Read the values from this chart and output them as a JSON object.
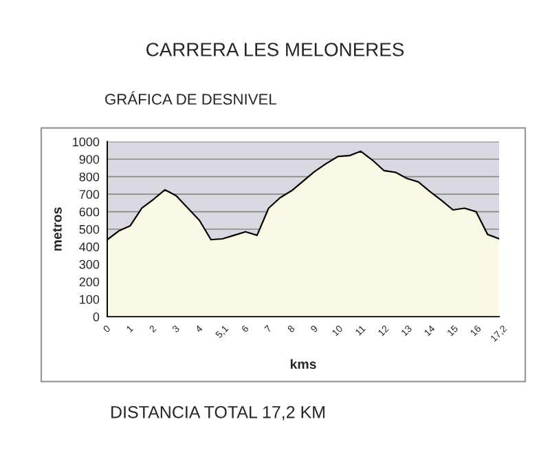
{
  "chart_data": {
    "type": "area",
    "title": "CARRERA LES MELONERES",
    "subtitle": "GRÁFICA DE DESNIVEL",
    "xlabel": "kms",
    "ylabel": "metros",
    "annotations": [
      "DISTANCIA TOTAL 17,2 KM"
    ],
    "categories": [
      "0",
      null,
      "1",
      null,
      "2",
      null,
      "3",
      null,
      "4",
      null,
      "5,1",
      null,
      "6",
      null,
      "7",
      null,
      "8",
      null,
      "9",
      null,
      "10",
      null,
      "11",
      null,
      "12",
      null,
      "13",
      null,
      "14",
      null,
      "15",
      null,
      "16",
      null,
      "17,2"
    ],
    "series": [
      {
        "color": "#fbf9e6",
        "values": [
          440,
          490,
          520,
          620,
          670,
          725,
          690,
          620,
          550,
          440,
          445,
          465,
          485,
          465,
          620,
          680,
          720,
          775,
          830,
          875,
          915,
          920,
          945,
          895,
          835,
          825,
          790,
          770,
          715,
          665,
          610,
          620,
          600,
          470,
          445
        ]
      }
    ],
    "ylim": [
      0,
      1000
    ],
    "yticks": [
      0,
      100,
      200,
      300,
      400,
      500,
      600,
      700,
      800,
      900,
      1000
    ],
    "grid": "y",
    "legend": false
  }
}
